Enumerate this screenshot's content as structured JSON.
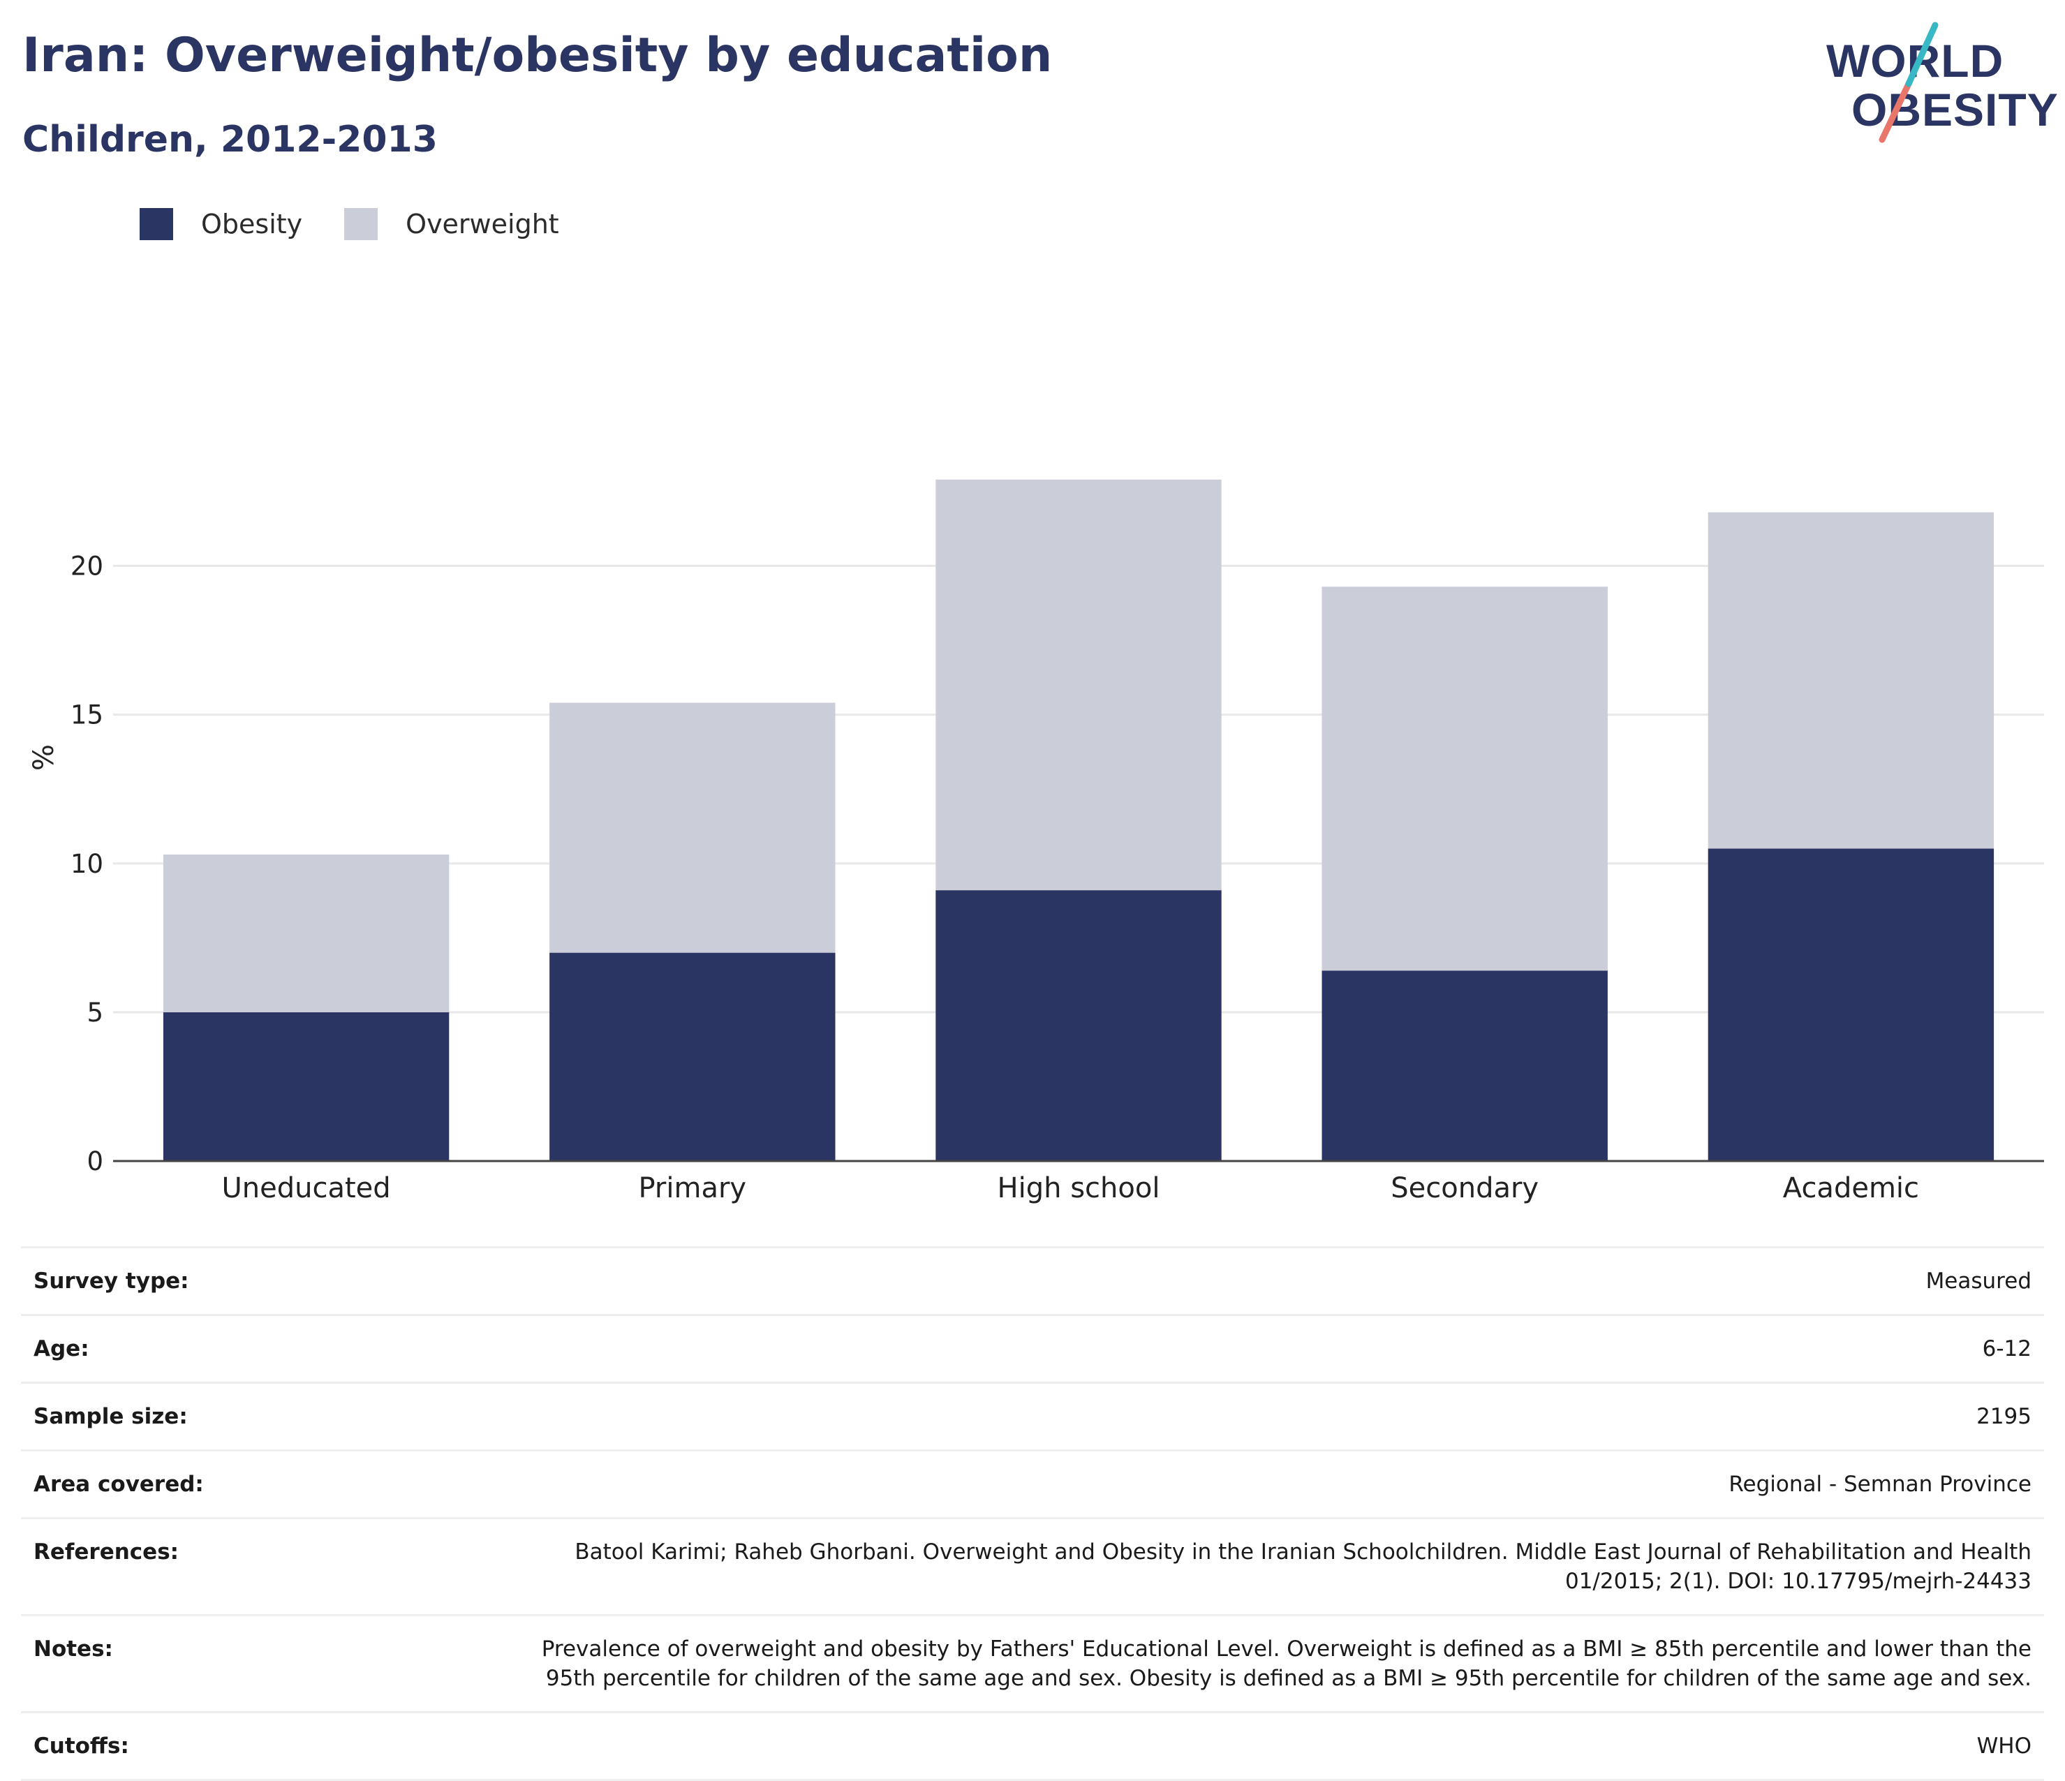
{
  "title": "Iran: Overweight/obesity by education",
  "subtitle": "Children, 2012-2013",
  "logo": {
    "line1": "WORLD",
    "line2": "OBESITY"
  },
  "colors": {
    "obesity": "#2b3563",
    "overweight": "#cbcdd9",
    "text": "#2b3563",
    "slash_red": "#e8766a",
    "slash_teal": "#38b7c4"
  },
  "legend": [
    {
      "label": "Obesity",
      "color": "#2b3563"
    },
    {
      "label": "Overweight",
      "color": "#cbcdd9"
    }
  ],
  "chart_data": {
    "type": "bar",
    "stacked": true,
    "categories": [
      "Uneducated",
      "Primary",
      "High school",
      "Secondary",
      "Academic"
    ],
    "series": [
      {
        "name": "Obesity",
        "values": [
          5.0,
          7.0,
          9.1,
          6.4,
          10.5
        ]
      },
      {
        "name": "Overweight",
        "values": [
          5.3,
          8.4,
          13.8,
          12.9,
          11.3
        ]
      }
    ],
    "ylabel": "%",
    "ylim": [
      0,
      24
    ],
    "yticks": [
      0,
      5,
      10,
      15,
      20
    ],
    "grid": true,
    "legend_position": "top-left"
  },
  "info": [
    {
      "key": "Survey type:",
      "value": "Measured"
    },
    {
      "key": "Age:",
      "value": "6-12"
    },
    {
      "key": "Sample size:",
      "value": "2195"
    },
    {
      "key": "Area covered:",
      "value": "Regional - Semnan Province"
    },
    {
      "key": "References:",
      "value": "Batool Karimi; Raheb Ghorbani. Overweight and Obesity in the Iranian Schoolchildren. Middle East Journal of Rehabilitation and Health 01/2015; 2(1). DOI: 10.17795/mejrh-24433"
    },
    {
      "key": "Notes:",
      "value": "Prevalence of overweight and obesity by Fathers' Educational Level. Overweight is defined as a BMI ≥ 85th percentile and lower than the 95th percentile for children of the same age and sex. Obesity is defined as a BMI ≥ 95th percentile for children of the same age and sex."
    },
    {
      "key": "Cutoffs:",
      "value": "WHO"
    }
  ]
}
